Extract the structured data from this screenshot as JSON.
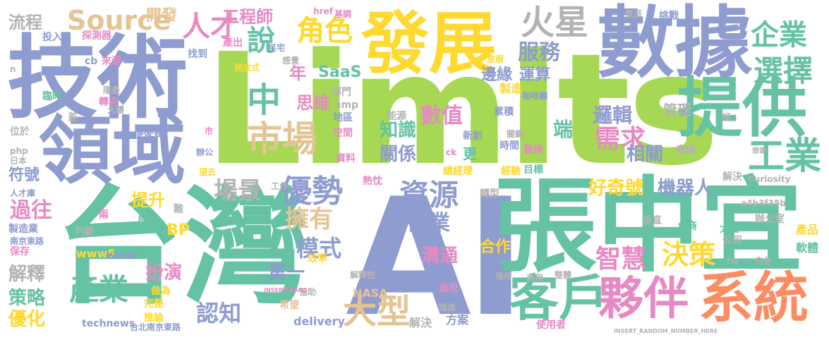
{
  "palette": {
    "purple": "#8e9ccf",
    "green": "#66c2a5",
    "lime": "#a6d854",
    "yellow": "#ffd92f",
    "orange": "#fc8d62",
    "pink": "#e78ac3",
    "sand": "#e5c494",
    "gray": "#b3b3b3"
  },
  "words": [
    {
      "text": "Limits",
      "color": "lime"
    },
    {
      "text": "AI",
      "color": "purple"
    },
    {
      "text": "台灣",
      "color": "green"
    },
    {
      "text": "張中宜",
      "color": "green"
    },
    {
      "text": "技術",
      "color": "purple"
    },
    {
      "text": "數據",
      "color": "purple"
    },
    {
      "text": "發展",
      "color": "yellow"
    },
    {
      "text": "領域",
      "color": "purple"
    },
    {
      "text": "提供",
      "color": "green"
    },
    {
      "text": "系統",
      "color": "orange"
    },
    {
      "text": "客戶",
      "color": "green"
    },
    {
      "text": "夥伴",
      "color": "pink"
    },
    {
      "text": "Source",
      "color": "sand"
    },
    {
      "text": "火星",
      "color": "gray"
    },
    {
      "text": "市場",
      "color": "sand"
    },
    {
      "text": "工業",
      "color": "green"
    },
    {
      "text": "企業",
      "color": "green"
    },
    {
      "text": "選擇",
      "color": "green"
    },
    {
      "text": "優勢",
      "color": "purple"
    },
    {
      "text": "資源",
      "color": "purple"
    },
    {
      "text": "大型",
      "color": "sand"
    },
    {
      "text": "產業",
      "color": "green"
    },
    {
      "text": "決策",
      "color": "yellow"
    },
    {
      "text": "智慧",
      "color": "pink"
    },
    {
      "text": "需求",
      "color": "pink"
    },
    {
      "text": "角色",
      "color": "yellow"
    },
    {
      "text": "人才",
      "color": "pink"
    },
    {
      "text": "說",
      "color": "green"
    },
    {
      "text": "中",
      "color": "green"
    },
    {
      "text": "場景",
      "color": "gray"
    },
    {
      "text": "過往",
      "color": "pink"
    },
    {
      "text": "擁有",
      "color": "sand"
    },
    {
      "text": "商業",
      "color": "purple"
    },
    {
      "text": "模式",
      "color": "purple"
    },
    {
      "text": "服務",
      "color": "purple"
    },
    {
      "text": "工程師",
      "color": "pink"
    },
    {
      "text": "開發",
      "color": "sand"
    },
    {
      "text": "流程",
      "color": "gray"
    },
    {
      "text": "認知",
      "color": "purple"
    },
    {
      "text": "策略",
      "color": "green"
    },
    {
      "text": "優化",
      "color": "yellow"
    },
    {
      "text": "解釋",
      "color": "gray"
    },
    {
      "text": "符號",
      "color": "purple"
    },
    {
      "text": "扮演",
      "color": "pink"
    },
    {
      "text": "溝通",
      "color": "pink"
    },
    {
      "text": "合作",
      "color": "yellow"
    },
    {
      "text": "第一",
      "color": "purple"
    },
    {
      "text": "機器人",
      "color": "purple"
    },
    {
      "text": "好奇號",
      "color": "yellow"
    },
    {
      "text": "邊緣",
      "color": "purple"
    },
    {
      "text": "運算",
      "color": "purple"
    },
    {
      "text": "數值",
      "color": "pink"
    },
    {
      "text": "知識",
      "color": "green"
    },
    {
      "text": "關係",
      "color": "purple"
    },
    {
      "text": "管理",
      "color": "gray"
    },
    {
      "text": "邏輯",
      "color": "purple"
    },
    {
      "text": "相關",
      "color": "purple"
    },
    {
      "text": "端",
      "color": "green"
    },
    {
      "text": "SaaS",
      "color": "green"
    },
    {
      "text": "BP",
      "color": "yellow"
    },
    {
      "text": "提升",
      "color": "yellow"
    },
    {
      "text": "思維",
      "color": "pink"
    },
    {
      "text": "年",
      "color": "pink"
    },
    {
      "text": "NASA",
      "color": "sand"
    },
    {
      "text": "delivery",
      "color": "purple"
    },
    {
      "text": "technews",
      "color": "purple"
    },
    {
      "text": "www5",
      "color": "yellow"
    },
    {
      "text": "www",
      "color": "purple"
    },
    {
      "text": "解決",
      "color": "gray"
    },
    {
      "text": "方案",
      "color": "purple"
    },
    {
      "text": "軟體",
      "color": "green"
    },
    {
      "text": "產品",
      "color": "yellow"
    },
    {
      "text": "辦公室",
      "color": "gray"
    },
    {
      "text": "台商",
      "color": "green"
    },
    {
      "text": "太空",
      "color": "green"
    },
    {
      "text": "垂直",
      "color": "gray"
    },
    {
      "text": "公司",
      "color": "gray"
    },
    {
      "text": "轉型",
      "color": "gray"
    },
    {
      "text": "建議",
      "color": "purple"
    },
    {
      "text": "跨足",
      "color": "purple"
    },
    {
      "text": "效率",
      "color": "yellow"
    },
    {
      "text": "協助",
      "color": "gray"
    },
    {
      "text": "希望",
      "color": "sand"
    },
    {
      "text": "完整",
      "color": "yellow"
    },
    {
      "text": "推論",
      "color": "yellow"
    },
    {
      "text": "做為",
      "color": "yellow"
    },
    {
      "text": "過程",
      "color": "pink"
    },
    {
      "text": "台北南京東路",
      "color": "purple"
    },
    {
      "text": "南京東路",
      "color": "purple"
    },
    {
      "text": "製造業",
      "color": "purple"
    },
    {
      "text": "保存",
      "color": "pink"
    },
    {
      "text": "判斷",
      "color": "gray"
    },
    {
      "text": "人才庫",
      "color": "purple"
    },
    {
      "text": "日本",
      "color": "gray"
    },
    {
      "text": "php",
      "color": "gray"
    },
    {
      "text": "位於",
      "color": "gray"
    },
    {
      "text": "臨時",
      "color": "green"
    },
    {
      "text": "投入",
      "color": "purple"
    },
    {
      "text": "探測器",
      "color": "pink"
    },
    {
      "text": "來源",
      "color": "pink"
    },
    {
      "text": "轉向",
      "color": "pink"
    },
    {
      "text": "隱憂",
      "color": "gray"
    },
    {
      "text": "硬體",
      "color": "purple"
    },
    {
      "text": "產出",
      "color": "pink"
    },
    {
      "text": "找到",
      "color": "purple"
    },
    {
      "text": "民宅",
      "color": "purple"
    },
    {
      "text": "開放式",
      "color": "yellow"
    },
    {
      "text": "感覺",
      "color": "gray"
    },
    {
      "text": "部門",
      "color": "gray"
    },
    {
      "text": "amp",
      "color": "gray"
    },
    {
      "text": "地區",
      "color": "purple"
    },
    {
      "text": "空間",
      "color": "pink"
    },
    {
      "text": "能源",
      "color": "gray"
    },
    {
      "text": "資料",
      "color": "pink"
    },
    {
      "text": "新創",
      "color": "purple"
    },
    {
      "text": "時間",
      "color": "purple"
    },
    {
      "text": "累積",
      "color": "purple"
    },
    {
      "text": "製造",
      "color": "yellow"
    },
    {
      "text": "咖啡廳",
      "color": "purple"
    },
    {
      "text": "醫療",
      "color": "pink"
    },
    {
      "text": "經驗",
      "color": "yellow"
    },
    {
      "text": "目標",
      "color": "green"
    },
    {
      "text": "總經理",
      "color": "yellow"
    },
    {
      "text": "產線",
      "color": "gray"
    },
    {
      "text": "解決",
      "color": "gray"
    },
    {
      "text": "Curiosity",
      "color": "gray"
    },
    {
      "text": "a4b3f35b",
      "color": "gray"
    },
    {
      "text": "白色",
      "color": "gray"
    },
    {
      "text": "商用",
      "color": "gray"
    },
    {
      "text": "整體",
      "color": "gray"
    },
    {
      "text": "使用者",
      "color": "pink"
    },
    {
      "text": "熱忱",
      "color": "pink"
    },
    {
      "text": "解釋性",
      "color": "gray"
    },
    {
      "text": "踏進",
      "color": "gray"
    },
    {
      "text": "挑戰",
      "color": "purple"
    },
    {
      "text": "氣派",
      "color": "gray"
    },
    {
      "text": "基調",
      "color": "pink"
    },
    {
      "text": "href",
      "color": "pink"
    },
    {
      "text": "放眼",
      "color": "yellow"
    },
    {
      "text": "cb",
      "color": "purple"
    },
    {
      "text": "ck",
      "color": "pink"
    },
    {
      "text": "tw",
      "color": "gray"
    },
    {
      "text": "n",
      "color": "gray"
    },
    {
      "text": "差",
      "color": "gray"
    },
    {
      "text": "便",
      "color": "purple"
    },
    {
      "text": "市",
      "color": "pink"
    },
    {
      "text": "兩",
      "color": "pink"
    },
    {
      "text": "具",
      "color": "green"
    },
    {
      "text": "難",
      "color": "gray"
    },
    {
      "text": "更",
      "color": "green"
    },
    {
      "text": "工作",
      "color": "gray"
    },
    {
      "text": "望去",
      "color": "yellow"
    },
    {
      "text": "辦公",
      "color": "purple"
    },
    {
      "text": "大樓",
      "color": "gray"
    },
    {
      "text": "關鍵",
      "color": "gray"
    },
    {
      "text": "想像",
      "color": "gray"
    },
    {
      "text": "極",
      "color": "gray"
    },
    {
      "text": "場所",
      "color": "gray"
    },
    {
      "text": "INSERT_RANDOM_NUMBER_HERE",
      "color": "gray"
    },
    {
      "text": "INSERT_RAND",
      "color": "pink"
    }
  ]
}
